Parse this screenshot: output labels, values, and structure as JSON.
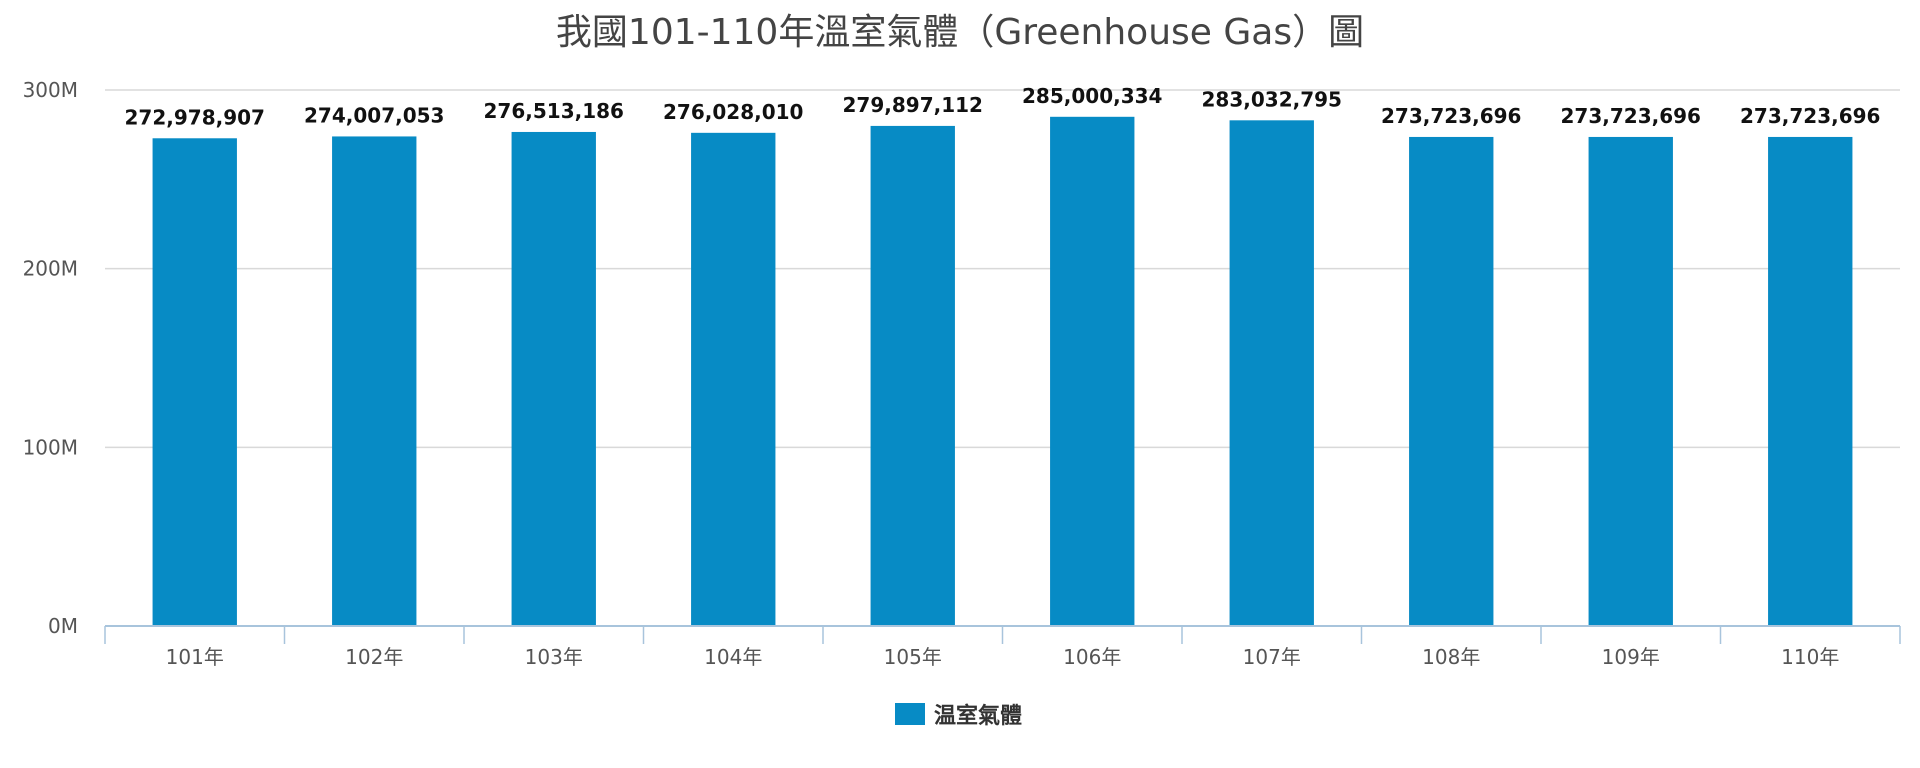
{
  "chart_data": {
    "type": "bar",
    "title": "我國101-110年溫室氣體（Greenhouse Gas）圖",
    "categories": [
      "101年",
      "102年",
      "103年",
      "104年",
      "105年",
      "106年",
      "107年",
      "108年",
      "109年",
      "110年"
    ],
    "series": [
      {
        "name": "温室氣體",
        "values": [
          272978907,
          274007053,
          276513186,
          276028010,
          279897112,
          285000334,
          283032795,
          273723696,
          273723696,
          273723696
        ],
        "labels": [
          "272,978,907",
          "274,007,053",
          "276,513,186",
          "276,028,010",
          "279,897,112",
          "285,000,334",
          "283,032,795",
          "273,723,696",
          "273,723,696",
          "273,723,696"
        ],
        "color": "#078bc5"
      }
    ],
    "y_ticks": [
      "0M",
      "100M",
      "200M",
      "300M"
    ],
    "ylim": [
      0,
      300000000
    ],
    "grid": true,
    "legend": "bottom-center"
  },
  "colors": {
    "bar": "#078bc5",
    "grid": "#d9d9d9",
    "axis": "#a8c4dc"
  }
}
